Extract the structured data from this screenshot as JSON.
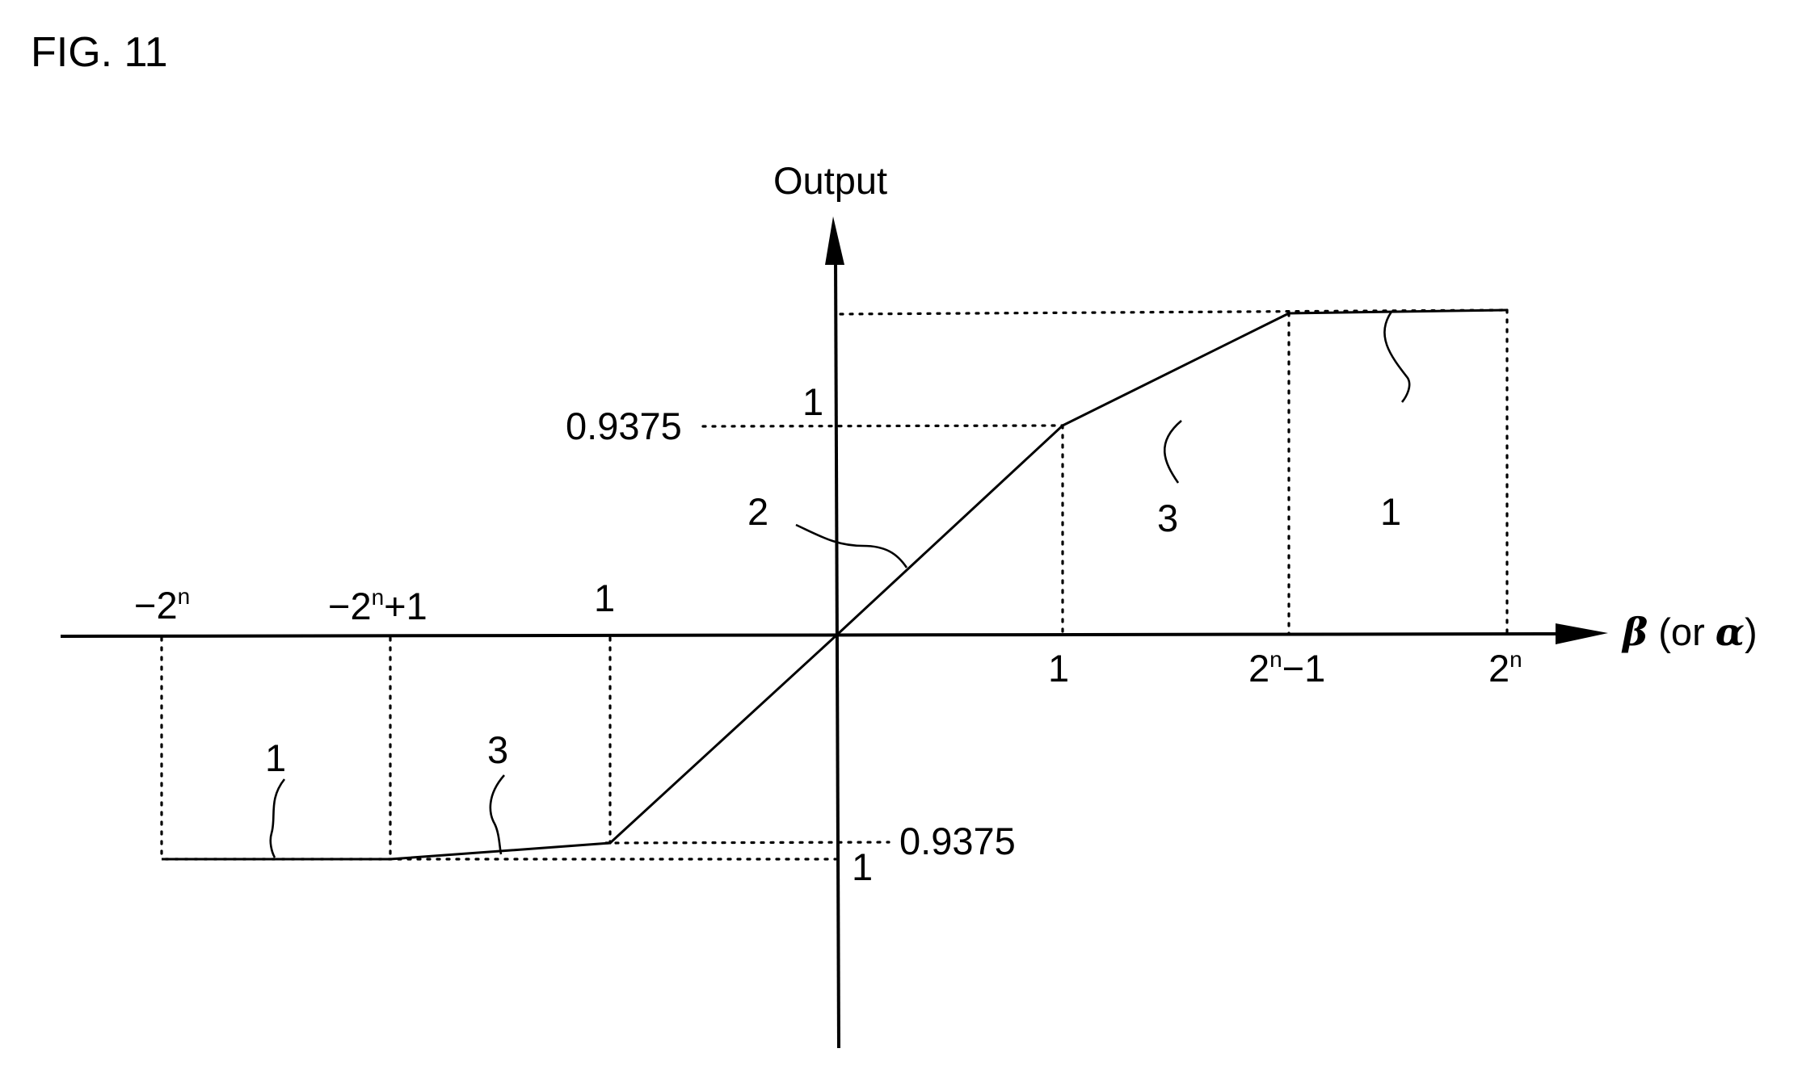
{
  "figure": {
    "title": "FIG. 11",
    "y_axis_label": "Output",
    "x_axis_label": {
      "beta": "β",
      "paren_open": " (or ",
      "alpha": "α",
      "paren_close": ")"
    }
  },
  "labels": {
    "x_top_neg_2n": "−2",
    "x_top_neg_2n_sup": "n",
    "x_top_neg_2n_plus1": "−2",
    "x_top_neg_2n_plus1_sup": "n",
    "x_top_neg_2n_plus1_tail": "+1",
    "x_top_one": "1",
    "x_bottom_one": "1",
    "x_bottom_2n_minus1": "2",
    "x_bottom_2n_minus1_sup": "n",
    "x_bottom_2n_minus1_tail": "−1",
    "x_bottom_2n": "2",
    "x_bottom_2n_sup": "n",
    "y_upper_0_9375": "0.9375",
    "y_upper_one": "1",
    "y_lower_0_9375": "0.9375",
    "y_lower_one": "1",
    "ref_right_3": "3",
    "ref_right_1": "1",
    "ref_center_2": "2",
    "ref_left_1": "1",
    "ref_left_3": "3"
  },
  "chart_data": {
    "type": "line",
    "segments": [
      {
        "name": "1",
        "range": "−2^n to −2^n+1",
        "output": "−1"
      },
      {
        "name": "3",
        "range": "−2^n+1 to −1",
        "output": "−1 to −0.9375"
      },
      {
        "name": "2",
        "range": "−1 to 1",
        "output": "−0.9375 to 0.9375"
      },
      {
        "name": "3",
        "range": "1 to 2^n−1",
        "output": "0.9375 to 1"
      },
      {
        "name": "1",
        "range": "2^n−1 to 2^n",
        "output": "1"
      }
    ],
    "ylevels": [
      0.9375,
      1
    ]
  }
}
